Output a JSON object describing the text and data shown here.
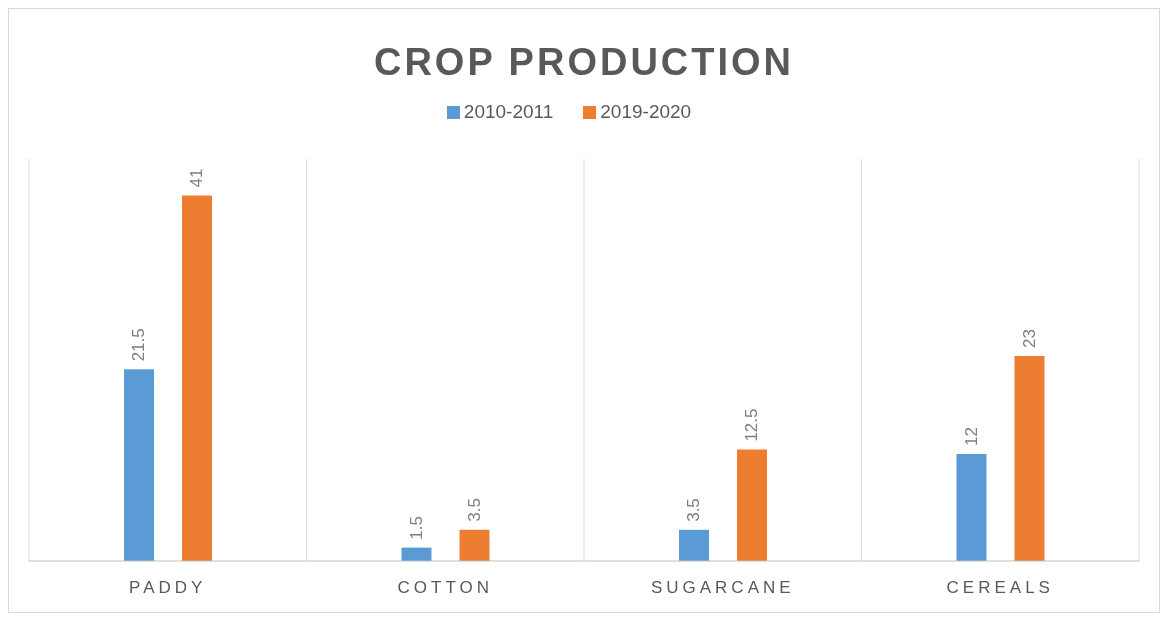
{
  "chart_data": {
    "type": "bar",
    "title": "CROP PRODUCTION",
    "categories": [
      "PADDY",
      "COTTON",
      "SUGARCANE",
      "CEREALS"
    ],
    "series": [
      {
        "name": "2010-2011",
        "color": "#5b9bd5",
        "values": [
          21.5,
          1.5,
          3.5,
          12
        ]
      },
      {
        "name": "2019-2020",
        "color": "#ed7d31",
        "values": [
          41,
          3.5,
          12.5,
          23
        ]
      }
    ],
    "data_labels": true,
    "grid": "x",
    "legend": "top"
  }
}
